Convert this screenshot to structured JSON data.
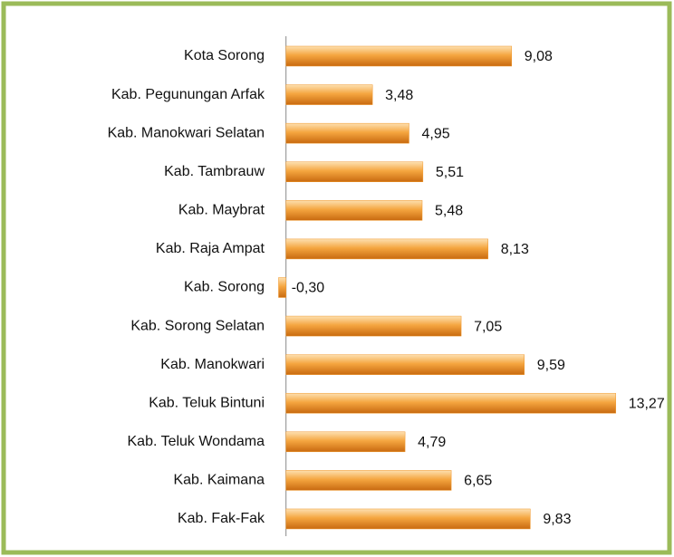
{
  "chart_data": {
    "type": "bar",
    "orientation": "horizontal",
    "categories": [
      "Kota Sorong",
      "Kab. Pegunungan Arfak",
      "Kab. Manokwari Selatan",
      "Kab. Tambrauw",
      "Kab. Maybrat",
      "Kab. Raja Ampat",
      "Kab. Sorong",
      "Kab. Sorong Selatan",
      "Kab. Manokwari",
      "Kab. Teluk Bintuni",
      "Kab. Teluk Wondama",
      "Kab. Kaimana",
      "Kab. Fak-Fak"
    ],
    "values": [
      9.08,
      3.48,
      4.95,
      5.51,
      5.48,
      8.13,
      -0.3,
      7.05,
      9.59,
      13.27,
      4.79,
      6.65,
      9.83
    ],
    "value_labels": [
      "9,08",
      "3,48",
      "4,95",
      "5,51",
      "5,48",
      "8,13",
      "-0,30",
      "7,05",
      "9,59",
      "13,27",
      "4,79",
      "6,65",
      "9,83"
    ],
    "color": "#f0962a",
    "xlim": [
      -0.5,
      13.5
    ]
  }
}
